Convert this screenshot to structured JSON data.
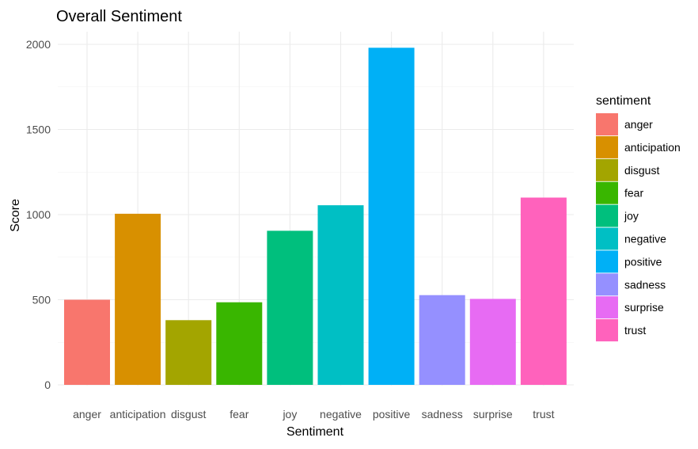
{
  "chart_data": {
    "type": "bar",
    "title": "Overall Sentiment",
    "xlabel": "Sentiment",
    "ylabel": "Score",
    "categories": [
      "anger",
      "anticipation",
      "disgust",
      "fear",
      "joy",
      "negative",
      "positive",
      "sadness",
      "surprise",
      "trust"
    ],
    "values": [
      500,
      1005,
      380,
      485,
      905,
      1055,
      1980,
      527,
      505,
      1100
    ],
    "colors": [
      "#F8766D",
      "#D89000",
      "#A3A500",
      "#39B600",
      "#00BF7D",
      "#00BFC4",
      "#00B0F6",
      "#9590FF",
      "#E76BF3",
      "#FF62BC"
    ],
    "ylim": [
      0,
      2000
    ],
    "yticks": [
      0,
      500,
      1000,
      1500,
      2000
    ],
    "grid": true,
    "legend": {
      "title": "sentiment",
      "placement": "right",
      "entries": [
        "anger",
        "anticipation",
        "disgust",
        "fear",
        "joy",
        "negative",
        "positive",
        "sadness",
        "surprise",
        "trust"
      ]
    }
  }
}
